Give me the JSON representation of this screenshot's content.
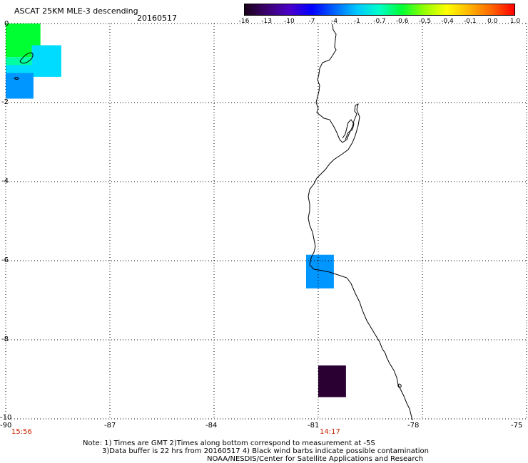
{
  "header": {
    "title": "ASCAT 25KM MLE-3 descending",
    "date": "20160517"
  },
  "colorbar": {
    "labels": [
      "-16",
      "-13",
      "-10",
      "-7",
      "-4",
      "-1",
      "-0.7",
      "-0.6",
      "-0.5",
      "-0.4",
      "-0.1",
      "0.0",
      "1.0"
    ],
    "gradient": [
      "#1a001a",
      "#3c0070",
      "#4b00c8",
      "#0000ff",
      "#0064ff",
      "#00c8ff",
      "#00ffc8",
      "#00ff32",
      "#96ff00",
      "#ffff00",
      "#ffb400",
      "#ff6400",
      "#ff0000"
    ]
  },
  "axes": {
    "x_ticks": [
      "-90",
      "-87",
      "-84",
      "-81",
      "-78",
      "-75"
    ],
    "y_ticks": [
      "0",
      "-2",
      "-4",
      "-6",
      "-8",
      "-10"
    ],
    "lon_range": [
      -90,
      -75
    ],
    "lat_range": [
      -10,
      0
    ],
    "grid": "dotted"
  },
  "times": {
    "left": "15:56",
    "middle": "14:17"
  },
  "cells": [
    {
      "lon0": -90.0,
      "lon1": -89.0,
      "lat0": -0.85,
      "lat1": 0.0,
      "color": "#00ff32"
    },
    {
      "lon0": -90.0,
      "lon1": -89.25,
      "lat0": -1.25,
      "lat1": -0.85,
      "color": "#00ffa0"
    },
    {
      "lon0": -89.25,
      "lon1": -88.4,
      "lat0": -1.35,
      "lat1": -0.55,
      "color": "#00dcff"
    },
    {
      "lon0": -90.0,
      "lon1": -89.25,
      "lat0": -1.25,
      "lat1": -1.05,
      "color": "#00dcff"
    },
    {
      "lon0": -90.0,
      "lon1": -89.2,
      "lat0": -1.9,
      "lat1": -1.25,
      "color": "#0096ff"
    },
    {
      "lon0": -81.35,
      "lon1": -80.55,
      "lat0": -6.7,
      "lat1": -5.85,
      "color": "#0096ff"
    },
    {
      "lon0": -81.0,
      "lon1": -80.2,
      "lat0": -9.45,
      "lat1": -8.65,
      "color": "#2a0033"
    }
  ],
  "notes": {
    "line1": "Note: 1) Times are GMT 2)Times along bottom correspond to measurement at -5S",
    "line2": "3)Data buffer is 22 hrs from 20160517 4) Black wind barbs indicate possible contamination",
    "line3": "NOAA/NESDIS/Center for Satellite Applications and Research"
  }
}
